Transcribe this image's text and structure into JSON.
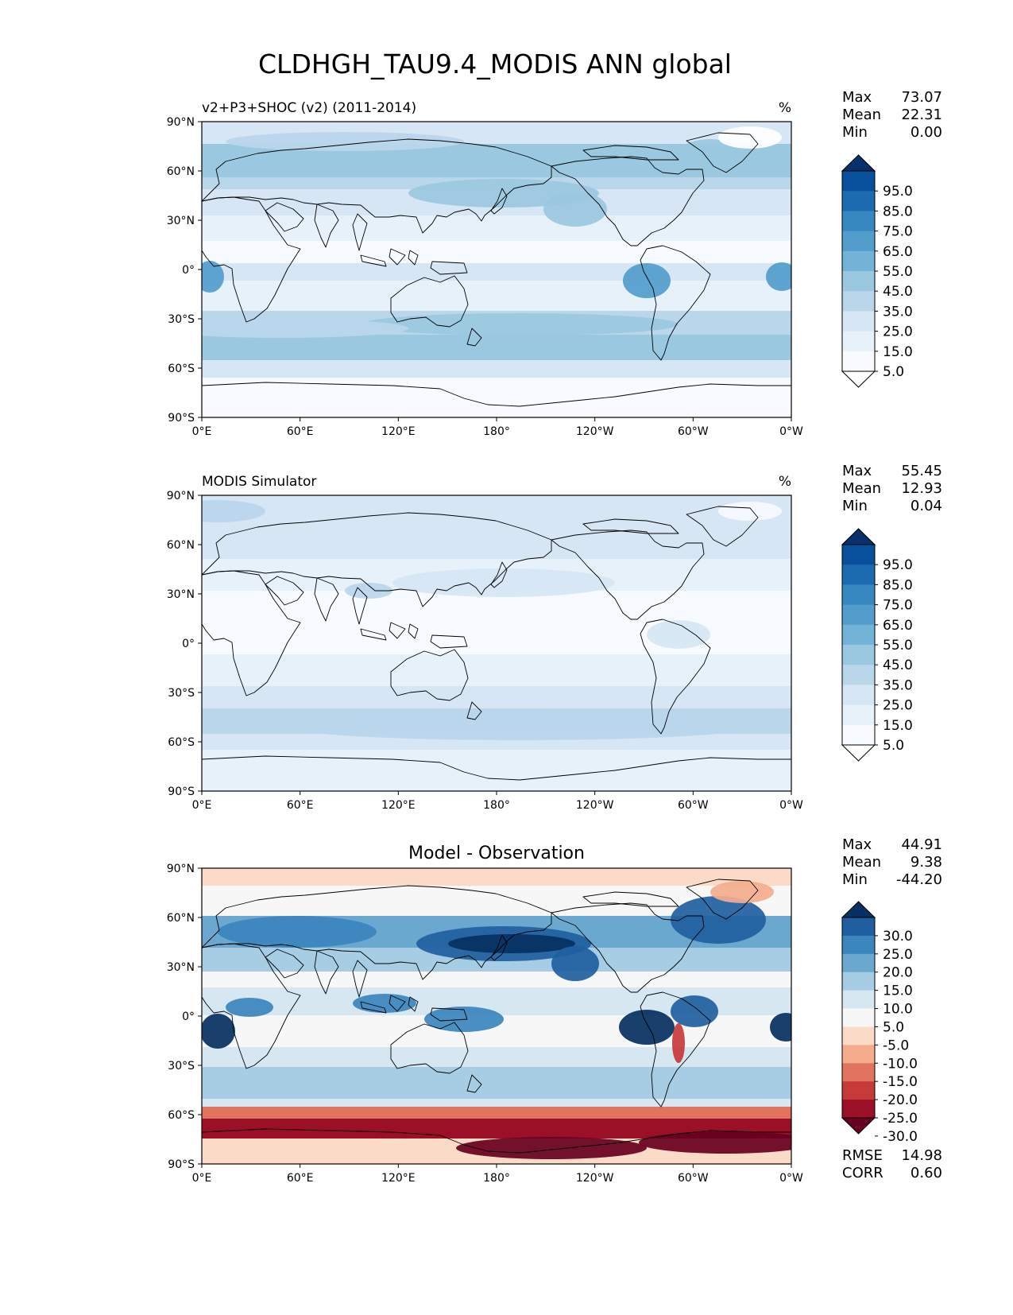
{
  "figure": {
    "title": "CLDHGH_TAU9.4_MODIS ANN global"
  },
  "axes": {
    "lat_ticks": [
      "90°N",
      "60°N",
      "30°N",
      "0°",
      "30°S",
      "60°S",
      "90°S"
    ],
    "lon_ticks": [
      "0°E",
      "60°E",
      "120°E",
      "180°",
      "120°W",
      "60°W",
      "0°W"
    ]
  },
  "panels": [
    {
      "id": "test",
      "left_title": "v2+P3+SHOC (v2) (2011-2014)",
      "center_title": "",
      "units": "%",
      "stats": [
        {
          "label": "Max",
          "value": "73.07"
        },
        {
          "label": "Mean",
          "value": "22.31"
        },
        {
          "label": "Min",
          "value": "0.00"
        }
      ],
      "colorbar": {
        "labels": [
          "95.0",
          "85.0",
          "75.0",
          "65.0",
          "55.0",
          "45.0",
          "35.0",
          "25.0",
          "15.0",
          "5.0"
        ],
        "colors": [
          "#08306b",
          "#08509b",
          "#1c6ab0",
          "#3787c0",
          "#529dcc",
          "#73b3d8",
          "#9ac8e0",
          "#bad6eb",
          "#d6e6f4",
          "#e7f1fa",
          "#f7fbff",
          "#ffffff"
        ]
      }
    },
    {
      "id": "ref",
      "left_title": "MODIS Simulator",
      "center_title": "",
      "units": "%",
      "stats": [
        {
          "label": "Max",
          "value": "55.45"
        },
        {
          "label": "Mean",
          "value": "12.93"
        },
        {
          "label": "Min",
          "value": "0.04"
        }
      ],
      "colorbar": {
        "labels": [
          "95.0",
          "85.0",
          "75.0",
          "65.0",
          "55.0",
          "45.0",
          "35.0",
          "25.0",
          "15.0",
          "5.0"
        ],
        "colors": [
          "#08306b",
          "#08509b",
          "#1c6ab0",
          "#3787c0",
          "#529dcc",
          "#73b3d8",
          "#9ac8e0",
          "#bad6eb",
          "#d6e6f4",
          "#e7f1fa",
          "#f7fbff",
          "#ffffff"
        ]
      }
    },
    {
      "id": "diff",
      "left_title": "",
      "center_title": "Model - Observation",
      "units": "",
      "stats": [
        {
          "label": "Max",
          "value": "44.91"
        },
        {
          "label": "Mean",
          "value": "9.38"
        },
        {
          "label": "Min",
          "value": "-44.20"
        }
      ],
      "extra_stats": [
        {
          "label": "RMSE",
          "value": "14.98"
        },
        {
          "label": "CORR",
          "value": "0.60"
        }
      ],
      "colorbar": {
        "labels": [
          "30.0",
          "25.0",
          "20.0",
          "15.0",
          "10.0",
          "5.0",
          "-5.0",
          "-10.0",
          "-15.0",
          "-20.0",
          "-25.0",
          "-30.0"
        ],
        "colors": [
          "#053061",
          "#1f5f9f",
          "#3b86bd",
          "#6aa8d0",
          "#a6cde3",
          "#d6e7f1",
          "#f7f7f7",
          "#fbdbc8",
          "#f4ac8d",
          "#e0745f",
          "#c63a3a",
          "#9b1027",
          "#67001f"
        ]
      }
    }
  ]
}
